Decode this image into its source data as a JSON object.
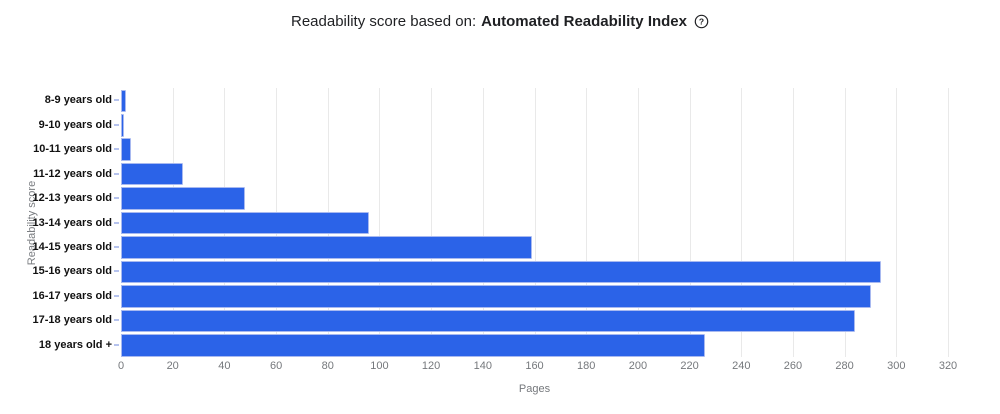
{
  "header": {
    "title_regular": "Readability score based on:",
    "title_bold": "Automated Readability Index",
    "help_icon": "question-mark-circle-icon",
    "help_glyph": "?"
  },
  "chart_data": {
    "type": "bar",
    "orientation": "horizontal",
    "title": "Readability score based on: Automated Readability Index",
    "categories": [
      "8-9 years old",
      "9-10 years old",
      "10-11 years old",
      "11-12 years old",
      "12-13 years old",
      "13-14 years old",
      "14-15 years old",
      "15-16 years old",
      "16-17 years old",
      "17-18 years old",
      "18 years old +"
    ],
    "values": [
      2,
      1,
      4,
      24,
      48,
      96,
      159,
      294,
      290,
      284,
      226
    ],
    "xlabel": "Pages",
    "ylabel": "Readability score",
    "xlim": [
      0,
      320
    ],
    "xticks": [
      0,
      20,
      40,
      60,
      80,
      100,
      120,
      140,
      160,
      180,
      200,
      220,
      240,
      260,
      280,
      300,
      320
    ],
    "grid": "vertical-only",
    "legend": false,
    "colors": {
      "bar": "#2b63e8",
      "bar_border": "#a8b9f0",
      "gridline": "#e9e9e9",
      "axis_text": "#75787c",
      "category_text": "#111111",
      "title_text": "#1f2023"
    }
  }
}
